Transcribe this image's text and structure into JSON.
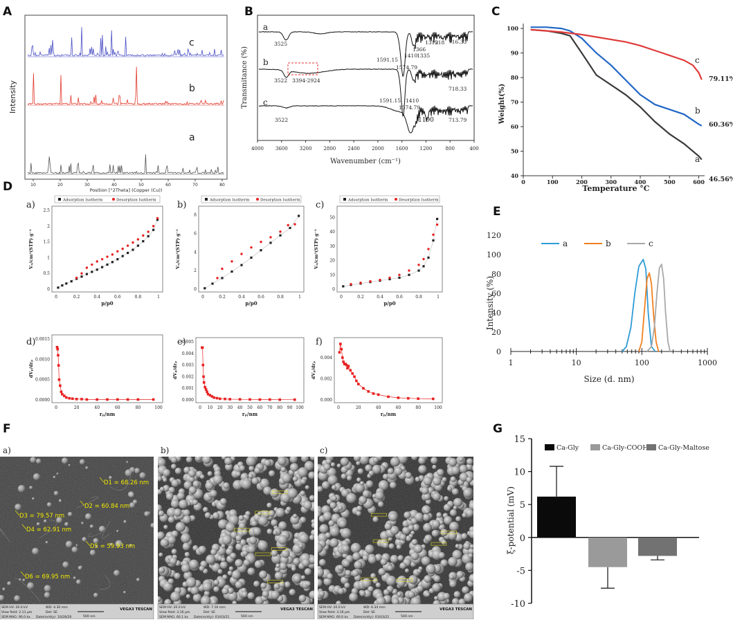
{
  "figure": {
    "panels": [
      "A",
      "B",
      "C",
      "D",
      "E",
      "F",
      "G"
    ]
  },
  "chart_data": [
    {
      "id": "A",
      "type": "line",
      "title": "",
      "ylabel": "Intensity",
      "xlabel": "Position [°2Theta] (Copper (Cu))",
      "x_ticks": [
        "10",
        "20",
        "30",
        "40",
        "50",
        "60",
        "70",
        "80"
      ],
      "series": [
        {
          "name": "c",
          "color": "#4a4fc4"
        },
        {
          "name": "b",
          "color": "#e0392b"
        },
        {
          "name": "a",
          "color": "#555555"
        }
      ]
    },
    {
      "id": "B",
      "type": "line",
      "ylabel": "Transmitance (%)",
      "xlabel": "Wavenumber (cm⁻¹)",
      "x_ticks": [
        "4000",
        "3600",
        "3200",
        "2800",
        "2400",
        "2000",
        "1600",
        "1200",
        "800",
        "400"
      ],
      "series": [
        {
          "name": "a"
        },
        {
          "name": "b"
        },
        {
          "name": "c"
        }
      ],
      "annotations": [
        "3525",
        "1591.15",
        "1574.79",
        "1410",
        "1366",
        "1335",
        "1312",
        "918",
        "716.33",
        "3522",
        "3394-2924",
        "1591.15",
        "1574.79",
        "1410",
        "718.33",
        "3522",
        "1190",
        "713.79"
      ]
    },
    {
      "id": "C",
      "type": "line",
      "ylabel": "Weight(%)",
      "xlabel": "Temperature °C",
      "xlim": [
        0,
        620
      ],
      "ylim": [
        40,
        102
      ],
      "x_ticks": [
        0,
        100,
        200,
        300,
        400,
        500,
        600
      ],
      "y_ticks": [
        40,
        50,
        60,
        70,
        80,
        90,
        100
      ],
      "series": [
        {
          "name": "a",
          "color": "#3a3a3a",
          "label": "46.56%",
          "x": [
            25,
            80,
            130,
            160,
            200,
            250,
            300,
            350,
            400,
            450,
            500,
            550,
            600,
            610
          ],
          "y": [
            99.5,
            99,
            98,
            97,
            90,
            81,
            77,
            73,
            68,
            62,
            57,
            53,
            48,
            46.56
          ]
        },
        {
          "name": "b",
          "color": "#2166c4",
          "label": "60.36%",
          "x": [
            25,
            80,
            130,
            160,
            200,
            250,
            300,
            350,
            400,
            450,
            500,
            550,
            600,
            610
          ],
          "y": [
            100.5,
            100.5,
            100,
            99,
            96,
            90,
            85,
            79,
            73,
            69,
            67,
            65,
            61,
            60.36
          ]
        },
        {
          "name": "c",
          "color": "#e03a3a",
          "label": "79.11%",
          "x": [
            25,
            80,
            130,
            200,
            250,
            300,
            350,
            400,
            450,
            500,
            550,
            580,
            600,
            610
          ],
          "y": [
            99.5,
            99,
            98.5,
            97.5,
            96.5,
            95.5,
            94.5,
            93,
            91,
            89,
            87,
            85,
            82,
            79.11
          ]
        }
      ]
    },
    {
      "id": "D-a",
      "type": "scatter",
      "subpanel": "a)",
      "xlabel": "p/p0",
      "ylabel": "Vₐ/cm³(STP) g⁻¹",
      "xlim": [
        0,
        1
      ],
      "ylim": [
        0,
        2.5
      ],
      "x_ticks": [
        0,
        0.2,
        0.4,
        0.6,
        0.8,
        1.0
      ],
      "y_ticks": [
        0,
        0.5,
        1,
        1.5,
        2,
        2.5
      ],
      "legend": [
        "Adsorption Isotherm",
        "Desorption Isotherm"
      ],
      "series": [
        {
          "name": "Adsorption Isotherm",
          "x": [
            0.02,
            0.06,
            0.1,
            0.15,
            0.2,
            0.25,
            0.3,
            0.35,
            0.4,
            0.45,
            0.5,
            0.55,
            0.6,
            0.65,
            0.7,
            0.75,
            0.8,
            0.85,
            0.9,
            0.95,
            0.99
          ],
          "y": [
            0.05,
            0.12,
            0.18,
            0.25,
            0.33,
            0.4,
            0.48,
            0.55,
            0.62,
            0.7,
            0.78,
            0.86,
            0.95,
            1.05,
            1.15,
            1.25,
            1.38,
            1.52,
            1.68,
            1.88,
            2.2
          ]
        },
        {
          "name": "Desorption Isotherm",
          "x": [
            0.2,
            0.25,
            0.3,
            0.35,
            0.4,
            0.45,
            0.5,
            0.55,
            0.6,
            0.65,
            0.7,
            0.75,
            0.8,
            0.85,
            0.9,
            0.95,
            0.99
          ],
          "y": [
            0.36,
            0.5,
            0.68,
            0.78,
            0.88,
            0.95,
            1.03,
            1.1,
            1.2,
            1.28,
            1.38,
            1.48,
            1.58,
            1.7,
            1.82,
            2.0,
            2.25
          ]
        }
      ]
    },
    {
      "id": "D-b",
      "type": "scatter",
      "subpanel": "b)",
      "xlabel": "p/p0",
      "ylabel": "Vₐ/cm³(STP) g⁻¹",
      "xlim": [
        0,
        1
      ],
      "ylim": [
        0,
        8.5
      ],
      "x_ticks": [
        0,
        0.2,
        0.4,
        0.6,
        0.8,
        1.0
      ],
      "y_ticks": [
        0,
        2,
        4,
        6,
        8
      ],
      "legend": [
        "Adsorption Isotherm",
        "Desorption Isotherm"
      ],
      "series": [
        {
          "name": "Adsorption Isotherm",
          "x": [
            0.02,
            0.1,
            0.2,
            0.3,
            0.4,
            0.5,
            0.6,
            0.7,
            0.8,
            0.9,
            0.99
          ],
          "y": [
            0.1,
            0.6,
            1.2,
            1.9,
            2.6,
            3.4,
            4.2,
            5.0,
            5.8,
            6.6,
            7.9
          ]
        },
        {
          "name": "Desorption Isotherm",
          "x": [
            0.15,
            0.2,
            0.3,
            0.4,
            0.5,
            0.6,
            0.7,
            0.8,
            0.88,
            0.95
          ],
          "y": [
            1.2,
            2.2,
            3.0,
            3.8,
            4.5,
            5.1,
            5.6,
            6.2,
            6.9,
            7.0
          ]
        }
      ]
    },
    {
      "id": "D-c",
      "type": "scatter",
      "subpanel": "c)",
      "xlabel": "p/p0",
      "ylabel": "Vₐ/cm³(STP) g⁻¹",
      "xlim": [
        0,
        1
      ],
      "ylim": [
        0,
        55
      ],
      "x_ticks": [
        0,
        0.2,
        0.4,
        0.6,
        0.8,
        1.0
      ],
      "y_ticks": [
        0,
        10,
        20,
        30,
        40,
        50
      ],
      "legend": [
        "Adsorption Isotherm",
        "Desorption Isotherm"
      ],
      "series": [
        {
          "name": "Adsorption Isotherm",
          "x": [
            0.02,
            0.1,
            0.2,
            0.3,
            0.4,
            0.5,
            0.6,
            0.7,
            0.8,
            0.85,
            0.9,
            0.95,
            0.99
          ],
          "y": [
            2,
            3,
            4,
            5,
            6,
            7,
            8,
            10,
            13,
            16,
            22,
            34,
            49
          ]
        },
        {
          "name": "Desorption Isotherm",
          "x": [
            0.1,
            0.2,
            0.3,
            0.4,
            0.5,
            0.6,
            0.7,
            0.8,
            0.85,
            0.9,
            0.95,
            0.99
          ],
          "y": [
            3.5,
            4.5,
            5.5,
            6.5,
            8,
            10,
            13,
            17,
            21,
            28,
            38,
            45
          ]
        }
      ]
    },
    {
      "id": "D-d",
      "type": "scatter",
      "subpanel": "d)",
      "xlabel": "rₚ/nm",
      "ylabel": "dVₚ/drₚ",
      "xlim": [
        0,
        100
      ],
      "ylim": [
        0,
        0.0015
      ],
      "x_ticks": [
        0,
        20,
        40,
        60,
        80,
        100
      ],
      "y_ticks": [
        "0.0000",
        "0.0005",
        "0.0010",
        "0.0015"
      ],
      "x": [
        1,
        1.5,
        2,
        2.5,
        3,
        4,
        5,
        6,
        8,
        10,
        13,
        16,
        20,
        25,
        30,
        40,
        50,
        60,
        70,
        80,
        95
      ],
      "y": [
        0.0013,
        0.00125,
        0.0011,
        0.00085,
        0.0005,
        0.00035,
        0.0002,
        0.00014,
        0.0001,
        6e-05,
        4e-05,
        3e-05,
        2e-05,
        2e-05,
        1e-05,
        1e-05,
        1e-05,
        1e-05,
        1e-05,
        1e-05,
        1e-05
      ]
    },
    {
      "id": "D-e",
      "type": "scatter",
      "subpanel": "e)",
      "xlabel": "rₚ/nm",
      "ylabel": "dVₚ/drₚ",
      "xlim": [
        0,
        100
      ],
      "ylim": [
        0,
        0.005
      ],
      "x_ticks": [
        0,
        10,
        20,
        30,
        40,
        50,
        60,
        70,
        80,
        90,
        100
      ],
      "y_ticks": [
        "0.000",
        "0.001",
        "0.002",
        "0.003",
        "0.004",
        "0.005"
      ],
      "x": [
        2,
        2.5,
        3,
        3.5,
        4,
        5,
        6,
        7,
        8,
        10,
        12,
        14,
        17,
        20,
        25,
        30,
        40,
        50,
        60,
        70,
        80,
        95
      ],
      "y": [
        0.0045,
        0.0045,
        0.003,
        0.002,
        0.0015,
        0.0011,
        0.0009,
        0.0007,
        0.0005,
        0.0004,
        0.0003,
        0.0002,
        0.00015,
        0.0001,
        8e-05,
        6e-05,
        5e-05,
        4e-05,
        3e-05,
        3e-05,
        2e-05,
        2e-05
      ]
    },
    {
      "id": "D-f",
      "type": "scatter",
      "subpanel": "f)",
      "xlabel": "rₚ/nm",
      "ylabel": "dVₚ/drₚ",
      "xlim": [
        0,
        100
      ],
      "ylim": [
        0,
        0.0055
      ],
      "x_ticks": [
        0,
        20,
        40,
        60,
        80,
        100
      ],
      "y_ticks": [
        "0.000",
        "0.002",
        "0.004"
      ],
      "x": [
        1,
        2,
        3,
        4,
        5,
        6,
        7,
        8,
        9,
        10,
        12,
        14,
        16,
        18,
        20,
        25,
        30,
        35,
        40,
        50,
        60,
        70,
        80,
        95
      ],
      "y": [
        0.0045,
        0.0053,
        0.0048,
        0.004,
        0.0036,
        0.0034,
        0.0034,
        0.0033,
        0.003,
        0.0032,
        0.0028,
        0.0025,
        0.0022,
        0.0018,
        0.0015,
        0.0011,
        0.0008,
        0.0006,
        0.0005,
        0.0003,
        0.0002,
        0.00015,
        0.00012,
        0.0001
      ]
    },
    {
      "id": "E",
      "type": "area",
      "xlabel": "Size (d. nm)",
      "ylabel": "Intensity (%)",
      "xscale": "log",
      "xlim": [
        1,
        1000
      ],
      "ylim": [
        0,
        120
      ],
      "x_ticks": [
        "1",
        "10",
        "100",
        "1000"
      ],
      "y_ticks": [
        0,
        20,
        40,
        60,
        80,
        100,
        120
      ],
      "legend": [
        "a",
        "b",
        "c"
      ],
      "series": [
        {
          "name": "a",
          "color": "#2e9bd6",
          "x": [
            50,
            58,
            68,
            78,
            90,
            105,
            115,
            125,
            140,
            160
          ],
          "y": [
            0,
            5,
            25,
            60,
            88,
            95,
            85,
            40,
            5,
            0
          ]
        },
        {
          "name": "b",
          "color": "#f07f1f",
          "x": [
            90,
            100,
            110,
            120,
            130,
            140,
            150,
            165,
            180
          ],
          "y": [
            0,
            10,
            45,
            75,
            81,
            70,
            40,
            10,
            0
          ]
        },
        {
          "name": "c",
          "color": "#a8a8a8",
          "x": [
            120,
            140,
            155,
            170,
            185,
            200,
            215,
            230,
            250,
            270
          ],
          "y": [
            0,
            5,
            25,
            60,
            86,
            90,
            75,
            40,
            10,
            0
          ]
        }
      ]
    },
    {
      "id": "G",
      "type": "bar",
      "ylabel": "ξ-potential (mV)",
      "ylim": [
        -10,
        15
      ],
      "y_ticks": [
        -10,
        -5,
        0,
        5,
        10,
        15
      ],
      "legend": [
        "Ca-Gly",
        "Ca-Gly-COOH",
        "Ca-Gly-Maltose"
      ],
      "categories": [
        "Ca-Gly",
        "Ca-Gly-COOH",
        "Ca-Gly-Maltose"
      ],
      "values": [
        6.2,
        -4.5,
        -2.8
      ],
      "errors": [
        4.6,
        3.2,
        0.6
      ],
      "colors": [
        "#0a0a0a",
        "#9a9a9a",
        "#727272"
      ]
    }
  ],
  "sem": {
    "subpanels": [
      "a)",
      "b)",
      "c)"
    ],
    "measurements_a": [
      "D1 = 68.26 nm",
      "D2 = 60.84 nm",
      "D3 = 79.57 nm",
      "D4 = 62.91 nm",
      "D5 = 59.93 nm",
      "D6 = 69.95 nm"
    ],
    "infobars": [
      {
        "hv": "SEM HV: 20.0 kV",
        "wd": "WD: 4.30 mm",
        "vf": "View field: 2.11 μm",
        "det": "Det: SE",
        "mag": "SEM MAG: 90.0 kx",
        "date": "Date(m/d/y): 10/28/20",
        "scale": "500 nm",
        "brand": "VEGA3 TESCAN"
      },
      {
        "hv": "SEM HV: 20.0 kV",
        "wd": "WD: 7.16 mm",
        "vf": "View field: 3.16 μm",
        "det": "Det: SE",
        "mag": "SEM MAG: 60.1 kx",
        "date": "Date(m/d/y): 01/03/21",
        "scale": "500 nm",
        "brand": "VEGA3 TESCAN"
      },
      {
        "hv": "SEM HV: 20.0 kV",
        "wd": "WD: 6.34 mm",
        "vf": "View field: 3.16 μm",
        "det": "Det: SE",
        "mag": "SEM MAG: 60.0 kx",
        "date": "Date(m/d/y): 01/03/21",
        "scale": "500 nm",
        "brand": "VEGA3 TESCAN"
      }
    ]
  }
}
